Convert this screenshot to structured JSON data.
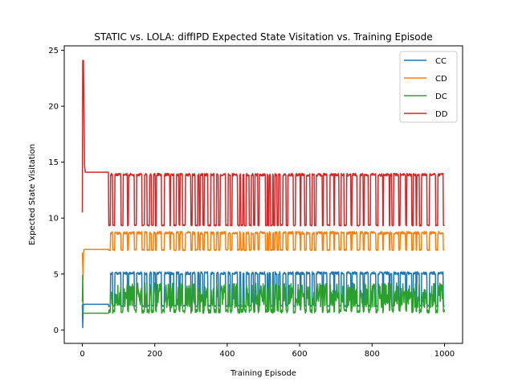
{
  "chart_data": {
    "type": "line",
    "title": "STATIC vs. LOLA: diffIPD Expected State Visitation vs. Training Episode",
    "xlabel": "Training Episode",
    "ylabel": "Expected State Visitation",
    "xlim": [
      -50,
      1050
    ],
    "ylim": [
      -1.2,
      25.4
    ],
    "xticks": [
      0,
      200,
      400,
      600,
      800,
      1000
    ],
    "yticks": [
      0,
      5,
      10,
      15,
      20,
      25
    ],
    "legend_position": "top-right",
    "grid": false,
    "series": [
      {
        "name": "CC",
        "color": "#1f77b4",
        "pattern": "alternate",
        "start": [
          [
            0,
            2.3
          ],
          [
            1,
            0.2
          ],
          [
            2,
            1.8
          ],
          [
            3,
            2.3
          ],
          [
            72,
            2.3
          ]
        ],
        "switch_start": 72,
        "low": 2.1,
        "high": 5.2
      },
      {
        "name": "CD",
        "color": "#ff7f0e",
        "pattern": "alternate",
        "start": [
          [
            0,
            6.9
          ],
          [
            2,
            4.5
          ],
          [
            3,
            6.9
          ],
          [
            5,
            7.2
          ],
          [
            72,
            7.2
          ]
        ],
        "switch_start": 72,
        "low": 7.1,
        "high": 8.8
      },
      {
        "name": "DC",
        "color": "#2ca02c",
        "pattern": "noisy",
        "start": [
          [
            0,
            2.5
          ],
          [
            1,
            4.9
          ],
          [
            2,
            1.5
          ],
          [
            72,
            1.5
          ]
        ],
        "switch_start": 72,
        "low": 1.5,
        "high": 4.0
      },
      {
        "name": "DD",
        "color": "#d62728",
        "pattern": "alternate",
        "start": [
          [
            0,
            10.5
          ],
          [
            1,
            24.1
          ],
          [
            3,
            24.1
          ],
          [
            6,
            14.8
          ],
          [
            8,
            14.1
          ],
          [
            72,
            14.1
          ]
        ],
        "switch_start": 72,
        "low": 9.3,
        "high": 14.0
      }
    ]
  }
}
